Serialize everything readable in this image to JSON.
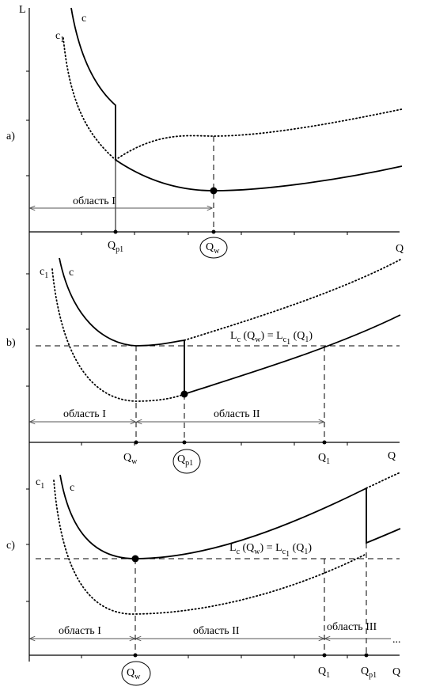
{
  "axis": {
    "y_label": "L"
  },
  "panels": [
    {
      "id": "a",
      "letter": "a)",
      "x_label": "Q",
      "curve_labels": {
        "c": "c",
        "c1_main": "c",
        "c1_sub": "1"
      },
      "ticks": {
        "qp1_main": "Q",
        "qp1_sub": "p1",
        "qw_main": "Q",
        "qw_sub": "w"
      },
      "regions": [
        "область  I"
      ]
    },
    {
      "id": "b",
      "letter": "b)",
      "x_label": "Q",
      "curve_labels": {
        "c": "c",
        "c1_main": "c",
        "c1_sub": "1"
      },
      "ticks": {
        "qw_main": "Q",
        "qw_sub": "w",
        "qp1_main": "Q",
        "qp1_sub": "p1",
        "q1_main": "Q",
        "q1_sub": "1"
      },
      "equation": {
        "p1": "L",
        "p2": "c",
        "p3": " (Q",
        "p4": "w",
        "p5": ") = L",
        "p6": "c",
        "p7": "1",
        "p8": " (Q",
        "p9": "1",
        "p10": ")"
      },
      "regions": [
        "область I",
        "область  II"
      ]
    },
    {
      "id": "c",
      "letter": "c)",
      "x_label": "Q",
      "curve_labels": {
        "c": "c",
        "c1_main": "c",
        "c1_sub": "1"
      },
      "ticks": {
        "qw_main": "Q",
        "qw_sub": "w",
        "q1_main": "Q",
        "q1_sub": "1",
        "qp1_main": "Q",
        "qp1_sub": "p1"
      },
      "equation": {
        "p1": "L",
        "p2": "c",
        "p3": " (Q",
        "p4": "w",
        "p5": ") = L",
        "p6": "c",
        "p7": "1",
        "p8": " (Q",
        "p9": "1",
        "p10": ")"
      },
      "regions": [
        "область I",
        "область  II",
        "область  III"
      ],
      "ellipsis": "..."
    }
  ]
}
